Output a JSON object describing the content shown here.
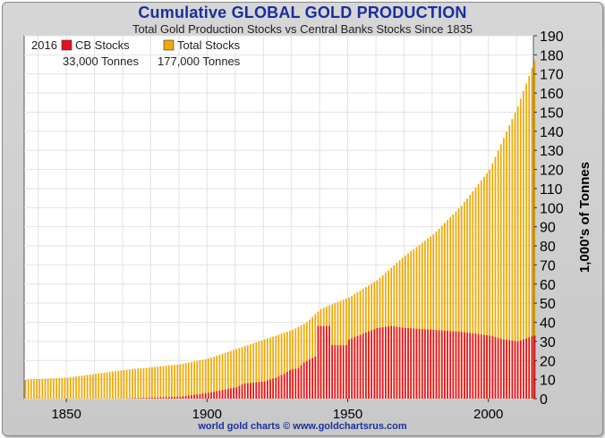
{
  "chart_data": {
    "type": "bar",
    "title": "Cumulative GLOBAL GOLD PRODUCTION",
    "subtitle": "Total Gold Production Stocks vs Central Banks Stocks Since 1835",
    "xlabel": "",
    "ylabel": "1,000's of Tonnes",
    "xlim": [
      1835,
      2016
    ],
    "ylim": [
      0,
      190
    ],
    "x_ticks": [
      1850,
      1900,
      1950,
      2000
    ],
    "y_ticks": [
      0,
      10,
      20,
      30,
      40,
      50,
      60,
      70,
      80,
      90,
      100,
      110,
      120,
      130,
      140,
      150,
      160,
      170,
      180,
      190
    ],
    "grid": true,
    "legend_position": "top-left",
    "legend": {
      "year": "2016",
      "items": [
        {
          "name": "CB Stocks",
          "value_label": "33,000 Tonnes",
          "color": "#e8101e"
        },
        {
          "name": "Total Stocks",
          "value_label": "177,000 Tonnes",
          "color": "#f0a800"
        }
      ]
    },
    "series": [
      {
        "name": "Total Stocks",
        "color": "#f0a800",
        "points": [
          [
            1835,
            10
          ],
          [
            1850,
            11
          ],
          [
            1860,
            13
          ],
          [
            1870,
            15
          ],
          [
            1880,
            16.5
          ],
          [
            1890,
            18
          ],
          [
            1900,
            21
          ],
          [
            1910,
            26
          ],
          [
            1920,
            31
          ],
          [
            1930,
            36
          ],
          [
            1935,
            40
          ],
          [
            1940,
            47
          ],
          [
            1950,
            53
          ],
          [
            1960,
            62
          ],
          [
            1970,
            75
          ],
          [
            1980,
            86
          ],
          [
            1990,
            101
          ],
          [
            2000,
            120
          ],
          [
            2010,
            153
          ],
          [
            2016,
            177
          ]
        ]
      },
      {
        "name": "CB Stocks",
        "color": "#e8101e",
        "points": [
          [
            1835,
            0
          ],
          [
            1870,
            0
          ],
          [
            1880,
            0.5
          ],
          [
            1890,
            1
          ],
          [
            1900,
            3
          ],
          [
            1910,
            6
          ],
          [
            1913,
            8
          ],
          [
            1920,
            9
          ],
          [
            1924,
            11
          ],
          [
            1927,
            13
          ],
          [
            1929,
            15
          ],
          [
            1932,
            16
          ],
          [
            1934,
            19
          ],
          [
            1938,
            22
          ],
          [
            1939,
            38
          ],
          [
            1943,
            38
          ],
          [
            1944,
            28
          ],
          [
            1949,
            28
          ],
          [
            1950,
            31
          ],
          [
            1960,
            37
          ],
          [
            1965,
            38
          ],
          [
            1970,
            37
          ],
          [
            1980,
            36
          ],
          [
            1990,
            35
          ],
          [
            2000,
            33
          ],
          [
            2005,
            31
          ],
          [
            2010,
            30
          ],
          [
            2016,
            33
          ]
        ]
      }
    ]
  },
  "footer": "world gold charts © www.goldchartsrus.com"
}
